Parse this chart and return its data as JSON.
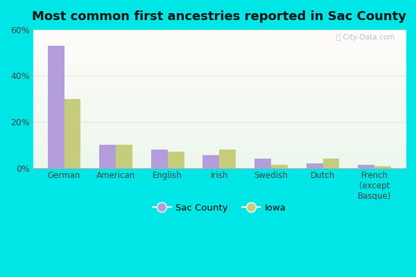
{
  "title": "Most common first ancestries reported in Sac County",
  "categories": [
    "German",
    "American",
    "English",
    "Irish",
    "Swedish",
    "Dutch",
    "French\n(except\nBasque)"
  ],
  "sac_county": [
    53,
    10,
    8,
    5.5,
    4,
    2,
    1.5
  ],
  "iowa": [
    30,
    10,
    7,
    8,
    1.5,
    4,
    0.8
  ],
  "sac_color": "#b39ddb",
  "iowa_color": "#c5cc7a",
  "ylim": [
    0,
    60
  ],
  "yticks": [
    0,
    20,
    40,
    60
  ],
  "ytick_labels": [
    "0%",
    "20%",
    "40%",
    "60%"
  ],
  "fig_bg_color": "#00e5e5",
  "legend_sac": "Sac County",
  "legend_iowa": "Iowa",
  "title_fontsize": 13,
  "bar_width": 0.32
}
